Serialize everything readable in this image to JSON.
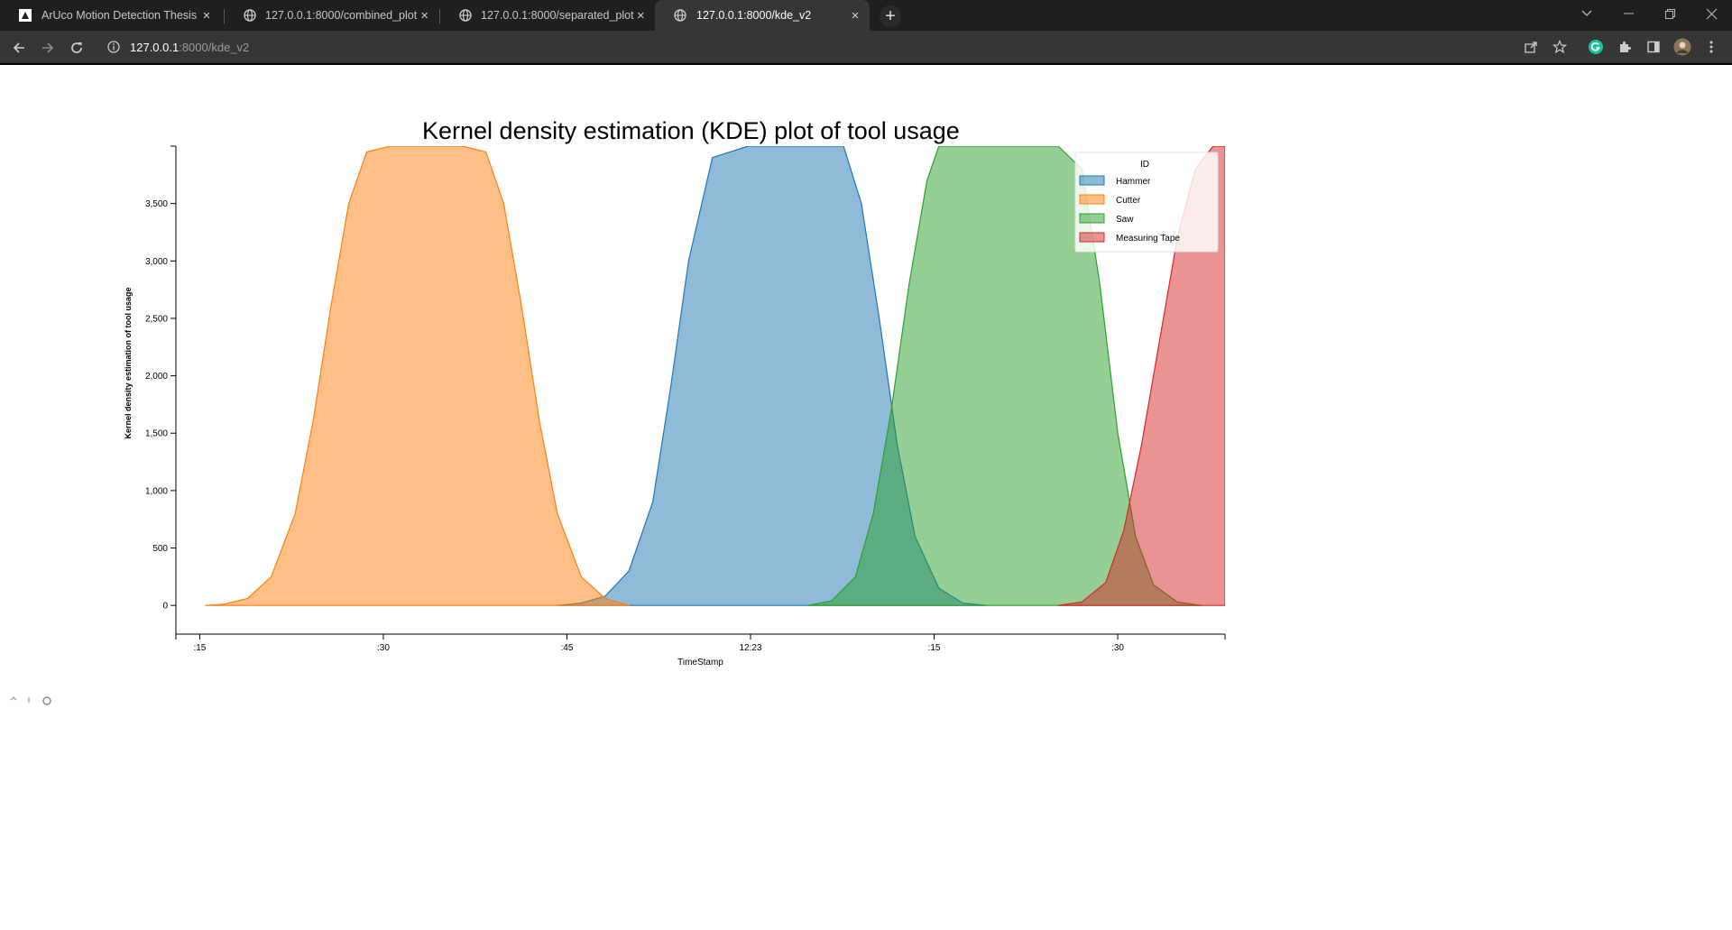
{
  "browser": {
    "tabs": [
      {
        "title": "ArUco Motion Detection Thesis",
        "icon": "app-icon",
        "active": false
      },
      {
        "title": "127.0.0.1:8000/combined_plot",
        "icon": "globe-icon",
        "active": false
      },
      {
        "title": "127.0.0.1:8000/separated_plot",
        "icon": "globe-icon",
        "active": false
      },
      {
        "title": "127.0.0.1:8000/kde_v2",
        "icon": "globe-icon",
        "active": true
      }
    ],
    "close_glyph": "×",
    "new_tab_glyph": "+",
    "url_host": "127.0.0.1",
    "url_rest": ":8000/kde_v2"
  },
  "chart_data": {
    "type": "area",
    "title": "Kernel density estimation (KDE) plot of tool usage",
    "xlabel": "TimeStamp",
    "ylabel": "Kernel density estimation of tool usage",
    "x_tick_labels": [
      ":15",
      ":30",
      ":45",
      "12:23",
      ":15",
      ":30"
    ],
    "y_ticks": [
      0,
      500,
      1000,
      1500,
      2000,
      2500,
      3000,
      3500
    ],
    "y_tick_labels": [
      "0",
      "500",
      "1,000",
      "1,500",
      "2,000",
      "2,500",
      "3,000",
      "3,500"
    ],
    "ylim": [
      -250,
      4000
    ],
    "xlim": [
      12,
      100
    ],
    "legend": {
      "title": "ID",
      "position": "top-right"
    },
    "series": [
      {
        "name": "Hammer",
        "color": "#1f77b4",
        "x": [
          44,
          46,
          48,
          50,
          52,
          53.5,
          55,
          57,
          60,
          63,
          66,
          68,
          69.5,
          71,
          72.5,
          74,
          76,
          78,
          80
        ],
        "values": [
          0,
          20,
          80,
          300,
          900,
          1900,
          3000,
          3900,
          4000,
          4000,
          4000,
          4000,
          3500,
          2500,
          1400,
          600,
          150,
          20,
          0
        ]
      },
      {
        "name": "Cutter",
        "color": "#ff7f0e",
        "x": [
          14.5,
          16,
          18,
          20,
          22,
          23.5,
          25,
          26.5,
          28,
          30,
          33,
          36,
          38,
          39.5,
          41,
          42.5,
          44,
          46,
          48,
          50
        ],
        "values": [
          0,
          10,
          60,
          250,
          800,
          1600,
          2600,
          3500,
          3950,
          4000,
          4000,
          4000,
          3950,
          3500,
          2600,
          1600,
          800,
          250,
          60,
          0
        ]
      },
      {
        "name": "Saw",
        "color": "#2ca02c",
        "x": [
          65,
          67,
          69,
          70.5,
          72,
          73.5,
          75,
          76,
          78,
          82,
          86,
          88,
          89.5,
          91,
          92.5,
          94,
          96,
          98
        ],
        "values": [
          0,
          40,
          250,
          800,
          1700,
          2800,
          3700,
          4000,
          4000,
          4000,
          4000,
          3800,
          2800,
          1500,
          600,
          180,
          30,
          0
        ]
      },
      {
        "name": "Measuring Tape",
        "color": "#d62728",
        "x": [
          86,
          88,
          90,
          91.5,
          93,
          94.5,
          96,
          97.5,
          99,
          100
        ],
        "values": [
          0,
          30,
          200,
          650,
          1400,
          2300,
          3200,
          3800,
          4000,
          4000
        ]
      }
    ]
  }
}
